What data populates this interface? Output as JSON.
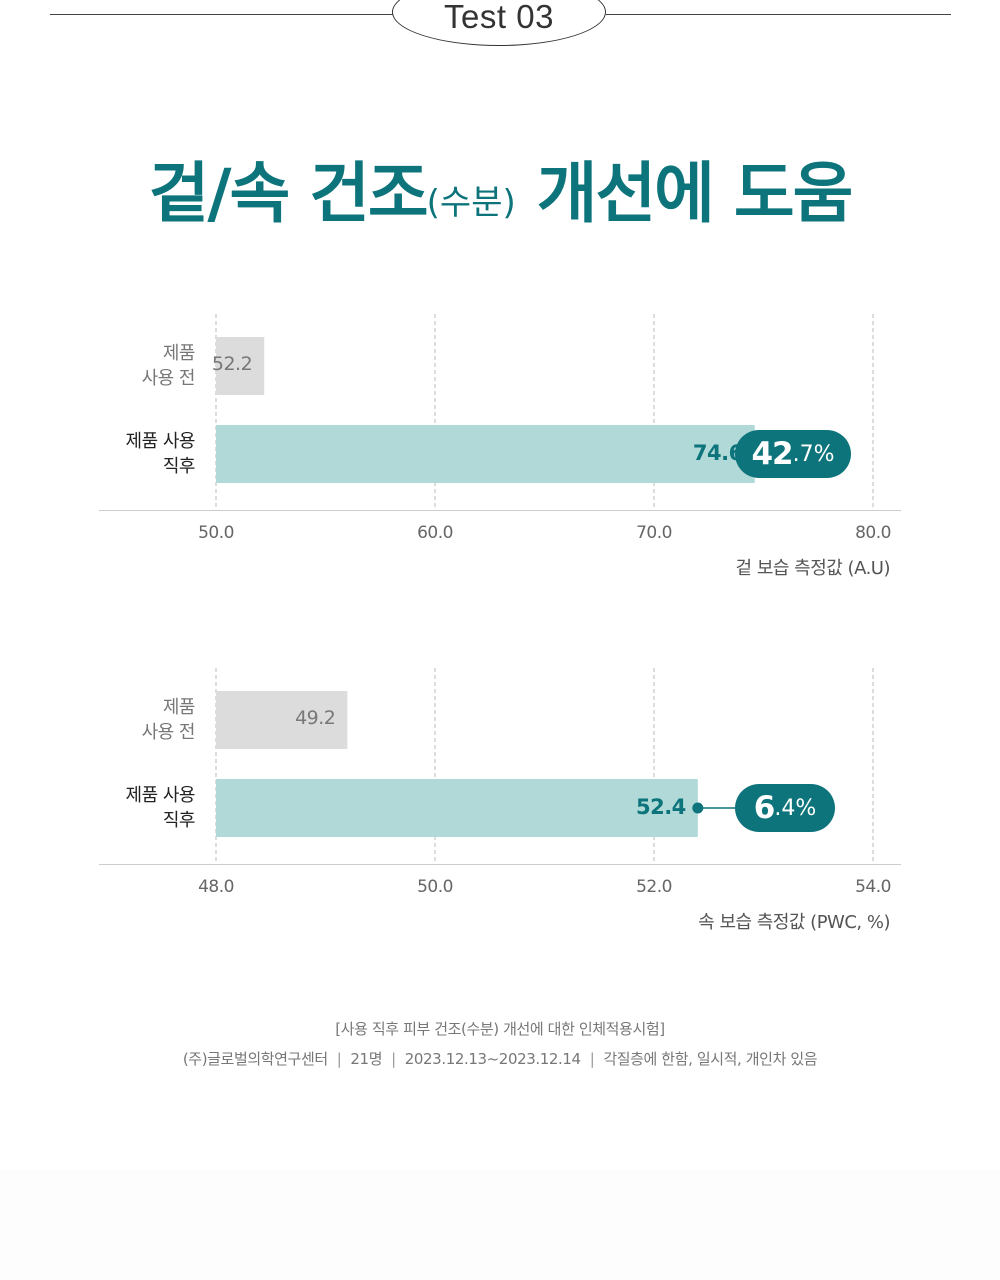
{
  "header": {
    "test_label": "Test 03"
  },
  "title": {
    "main_1": "겉/속 건조",
    "paren": "(수분)",
    "main_2": "개선에 도움"
  },
  "colors": {
    "accent": "#0d747b",
    "bar_before": "#dcdcdc",
    "bar_after": "#b0d9d8",
    "grid": "#bbbbbb",
    "axis": "#cccccc"
  },
  "chart_data": [
    {
      "type": "bar",
      "orientation": "horizontal",
      "categories": [
        "제품 사용 전",
        "제품 사용 직후"
      ],
      "category_lines": [
        [
          "제품",
          "사용 전"
        ],
        [
          "제품 사용",
          "직후"
        ]
      ],
      "values": [
        52.2,
        74.6
      ],
      "value_labels": [
        "52.2",
        "74.6"
      ],
      "xlim": [
        50.0,
        80.0
      ],
      "ticks": [
        "50.0",
        "60.0",
        "70.0",
        "80.0"
      ],
      "xlabel": "겉 보습 측정값 (A.U)",
      "improvement": {
        "big": "42",
        "small": ".7%"
      },
      "grid": true
    },
    {
      "type": "bar",
      "orientation": "horizontal",
      "categories": [
        "제품 사용 전",
        "제품 사용 직후"
      ],
      "category_lines": [
        [
          "제품",
          "사용 전"
        ],
        [
          "제품 사용",
          "직후"
        ]
      ],
      "values": [
        49.2,
        52.4
      ],
      "value_labels": [
        "49.2",
        "52.4"
      ],
      "xlim": [
        48.0,
        54.0
      ],
      "ticks": [
        "48.0",
        "50.0",
        "52.0",
        "54.0"
      ],
      "xlabel": "속 보습 측정값 (PWC, %)",
      "improvement": {
        "big": "6",
        "small": ".4%"
      },
      "grid": true
    }
  ],
  "footnote": {
    "line1": "[사용 직후 피부 건조(수분) 개선에 대한 인체적용시험]",
    "line2_parts": [
      "(주)글로벌의학연구센터",
      "21명",
      "2023.12.13~2023.12.14",
      "각질층에 한함, 일시적, 개인차 있음"
    ],
    "separator": "|"
  }
}
